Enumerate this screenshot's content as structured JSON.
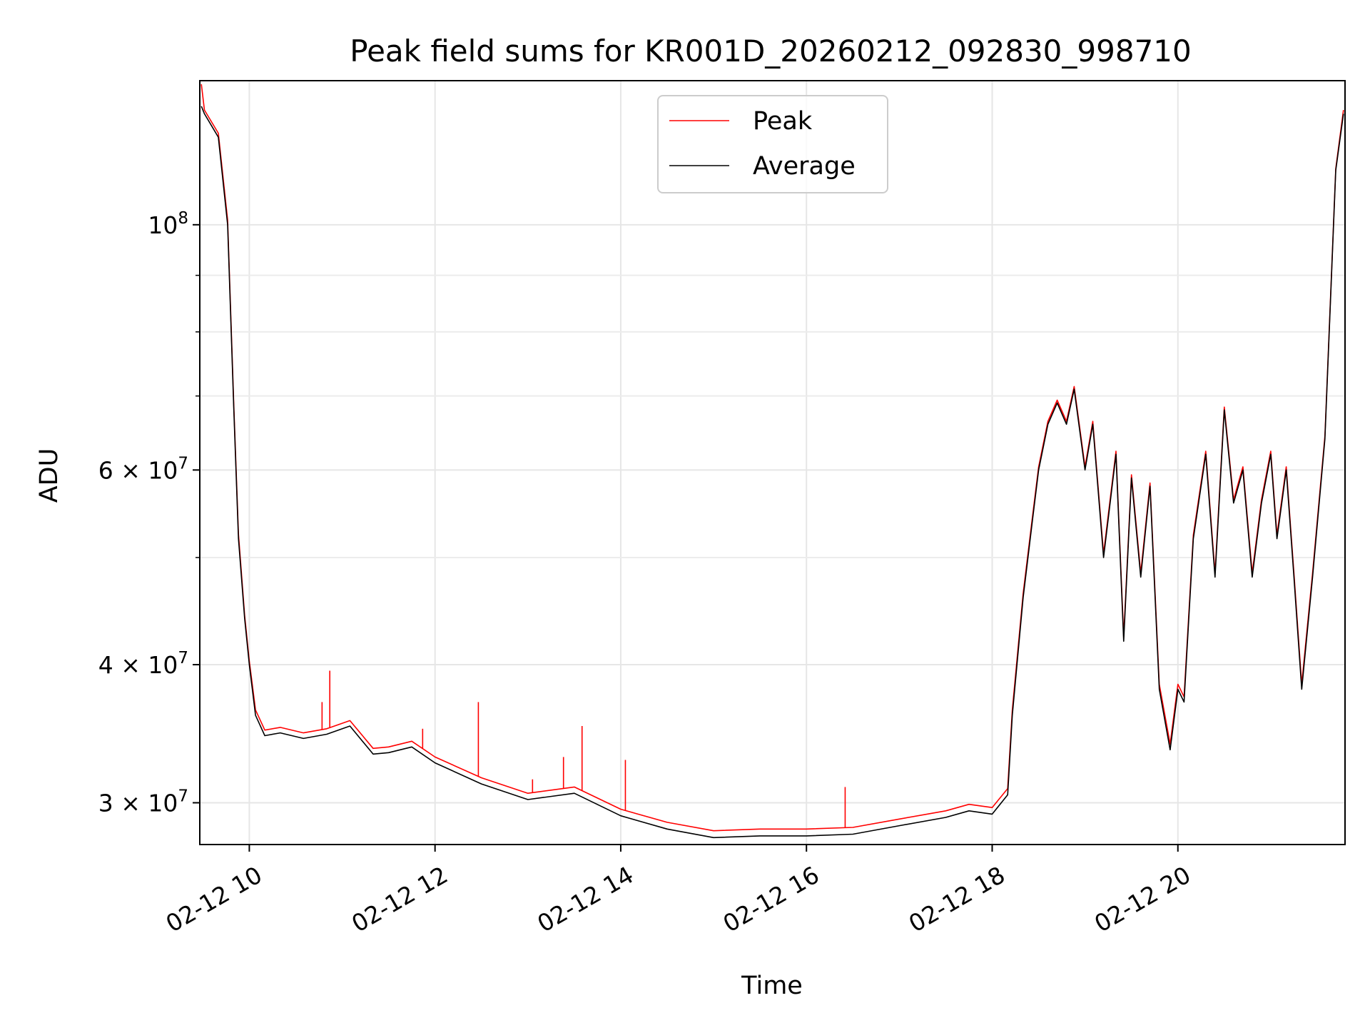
{
  "chart_data": {
    "type": "line",
    "title": "Peak field sums for KR001D_20260212_092830_998710",
    "xlabel": "Time",
    "ylabel": "ADU",
    "yscale": "log",
    "grid": true,
    "legend": {
      "placement": "upper center",
      "entries": [
        "Peak",
        "Average"
      ]
    },
    "colors": {
      "Peak": "#ff0000",
      "Average": "#000000"
    },
    "xlim": [
      "2026-02-12 09:28",
      "2026-02-12 21:48"
    ],
    "ylim": [
      27500000,
      135000000
    ],
    "xticks": [
      {
        "value": "2026-02-12 10:00",
        "label": "02-12 10"
      },
      {
        "value": "2026-02-12 12:00",
        "label": "02-12 12"
      },
      {
        "value": "2026-02-12 14:00",
        "label": "02-12 14"
      },
      {
        "value": "2026-02-12 16:00",
        "label": "02-12 16"
      },
      {
        "value": "2026-02-12 18:00",
        "label": "02-12 18"
      },
      {
        "value": "2026-02-12 20:00",
        "label": "02-12 20"
      }
    ],
    "yticks_major": [
      {
        "value": 30000000,
        "mantissa": "3",
        "exp": "7"
      },
      {
        "value": 40000000,
        "mantissa": "4",
        "exp": "7"
      },
      {
        "value": 60000000,
        "mantissa": "6",
        "exp": "7"
      },
      {
        "value": 100000000,
        "mantissa": "",
        "exp": "8"
      }
    ],
    "yticks_minor": [
      50000000,
      70000000,
      80000000,
      90000000
    ],
    "series": [
      {
        "name": "Average",
        "x": [
          "2026-02-12 09:29",
          "2026-02-12 09:31",
          "2026-02-12 09:40",
          "2026-02-12 09:46",
          "2026-02-12 09:50",
          "2026-02-12 09:53",
          "2026-02-12 09:57",
          "2026-02-12 10:00",
          "2026-02-12 10:04",
          "2026-02-12 10:10",
          "2026-02-12 10:20",
          "2026-02-12 10:35",
          "2026-02-12 10:50",
          "2026-02-12 11:05",
          "2026-02-12 11:20",
          "2026-02-12 11:30",
          "2026-02-12 11:45",
          "2026-02-12 12:00",
          "2026-02-12 12:30",
          "2026-02-12 13:00",
          "2026-02-12 13:30",
          "2026-02-12 14:00",
          "2026-02-12 14:30",
          "2026-02-12 15:00",
          "2026-02-12 15:30",
          "2026-02-12 16:00",
          "2026-02-12 16:30",
          "2026-02-12 17:00",
          "2026-02-12 17:30",
          "2026-02-12 17:45",
          "2026-02-12 18:00",
          "2026-02-12 18:10",
          "2026-02-12 18:13",
          "2026-02-12 18:20",
          "2026-02-12 18:26",
          "2026-02-12 18:30",
          "2026-02-12 18:36",
          "2026-02-12 18:42",
          "2026-02-12 18:48",
          "2026-02-12 18:53",
          "2026-02-12 19:00",
          "2026-02-12 19:05",
          "2026-02-12 19:12",
          "2026-02-12 19:20",
          "2026-02-12 19:25",
          "2026-02-12 19:30",
          "2026-02-12 19:36",
          "2026-02-12 19:42",
          "2026-02-12 19:48",
          "2026-02-12 19:55",
          "2026-02-12 20:00",
          "2026-02-12 20:04",
          "2026-02-12 20:10",
          "2026-02-12 20:18",
          "2026-02-12 20:24",
          "2026-02-12 20:30",
          "2026-02-12 20:36",
          "2026-02-12 20:42",
          "2026-02-12 20:48",
          "2026-02-12 20:54",
          "2026-02-12 21:00",
          "2026-02-12 21:04",
          "2026-02-12 21:10",
          "2026-02-12 21:15",
          "2026-02-12 21:20",
          "2026-02-12 21:27",
          "2026-02-12 21:35",
          "2026-02-12 21:42",
          "2026-02-12 21:47"
        ],
        "y": [
          128000000,
          126000000,
          120000000,
          100000000,
          68000000,
          52000000,
          44000000,
          40000000,
          36000000,
          34500000,
          34700000,
          34300000,
          34600000,
          35200000,
          33200000,
          33300000,
          33700000,
          32600000,
          31200000,
          30200000,
          30600000,
          29200000,
          28400000,
          27900000,
          28000000,
          28000000,
          28100000,
          28600000,
          29100000,
          29500000,
          29300000,
          30500000,
          36000000,
          46000000,
          54000000,
          60000000,
          66000000,
          69000000,
          66000000,
          71000000,
          60000000,
          66000000,
          50000000,
          62000000,
          42000000,
          59000000,
          48000000,
          58000000,
          38000000,
          33500000,
          38000000,
          37000000,
          52000000,
          62000000,
          48000000,
          68000000,
          56000000,
          60000000,
          48000000,
          56000000,
          62000000,
          52000000,
          60000000,
          48000000,
          38000000,
          48000000,
          64000000,
          112000000,
          126000000
        ]
      },
      {
        "name": "Peak",
        "x": [
          "2026-02-12 09:29",
          "2026-02-12 09:31",
          "2026-02-12 09:40",
          "2026-02-12 09:46",
          "2026-02-12 09:50",
          "2026-02-12 09:53",
          "2026-02-12 09:57",
          "2026-02-12 10:00",
          "2026-02-12 10:04",
          "2026-02-12 10:10",
          "2026-02-12 10:20",
          "2026-02-12 10:35",
          "2026-02-12 10:50",
          "2026-02-12 11:05",
          "2026-02-12 11:20",
          "2026-02-12 11:30",
          "2026-02-12 11:45",
          "2026-02-12 12:00",
          "2026-02-12 12:30",
          "2026-02-12 13:00",
          "2026-02-12 13:30",
          "2026-02-12 14:00",
          "2026-02-12 14:30",
          "2026-02-12 15:00",
          "2026-02-12 15:30",
          "2026-02-12 16:00",
          "2026-02-12 16:30",
          "2026-02-12 17:00",
          "2026-02-12 17:30",
          "2026-02-12 17:45",
          "2026-02-12 18:00",
          "2026-02-12 18:10",
          "2026-02-12 18:13",
          "2026-02-12 18:20",
          "2026-02-12 18:26",
          "2026-02-12 18:30",
          "2026-02-12 18:36",
          "2026-02-12 18:42",
          "2026-02-12 18:48",
          "2026-02-12 18:53",
          "2026-02-12 19:00",
          "2026-02-12 19:05",
          "2026-02-12 19:12",
          "2026-02-12 19:20",
          "2026-02-12 19:25",
          "2026-02-12 19:30",
          "2026-02-12 19:36",
          "2026-02-12 19:42",
          "2026-02-12 19:48",
          "2026-02-12 19:55",
          "2026-02-12 20:00",
          "2026-02-12 20:04",
          "2026-02-12 20:10",
          "2026-02-12 20:18",
          "2026-02-12 20:24",
          "2026-02-12 20:30",
          "2026-02-12 20:36",
          "2026-02-12 20:42",
          "2026-02-12 20:48",
          "2026-02-12 20:54",
          "2026-02-12 21:00",
          "2026-02-12 21:04",
          "2026-02-12 21:10",
          "2026-02-12 21:15",
          "2026-02-12 21:20",
          "2026-02-12 21:27",
          "2026-02-12 21:35",
          "2026-02-12 21:42",
          "2026-02-12 21:47"
        ],
        "y": [
          134000000,
          127000000,
          121000000,
          101000000,
          68500000,
          52500000,
          44300000,
          40300000,
          36400000,
          34900000,
          35100000,
          34700000,
          35000000,
          35600000,
          33600000,
          33700000,
          34100000,
          33000000,
          31600000,
          30600000,
          31000000,
          29600000,
          28800000,
          28300000,
          28400000,
          28400000,
          28500000,
          29000000,
          29500000,
          29900000,
          29700000,
          30900000,
          36400000,
          46400000,
          54400000,
          60400000,
          66400000,
          69400000,
          66400000,
          71400000,
          60400000,
          66400000,
          50400000,
          62400000,
          42400000,
          59400000,
          48400000,
          58400000,
          38400000,
          33900000,
          38400000,
          37400000,
          52400000,
          62400000,
          48400000,
          68400000,
          56400000,
          60400000,
          48400000,
          56400000,
          62400000,
          52400000,
          60400000,
          48400000,
          38400000,
          48400000,
          64400000,
          112400000,
          127000000
        ]
      }
    ],
    "annotations": [
      {
        "series": "Peak",
        "type": "spike",
        "x": "2026-02-12 10:47",
        "y": 37000000
      },
      {
        "series": "Peak",
        "type": "spike",
        "x": "2026-02-12 10:52",
        "y": 39500000
      },
      {
        "series": "Peak",
        "type": "spike",
        "x": "2026-02-12 11:52",
        "y": 35000000
      },
      {
        "series": "Peak",
        "type": "spike",
        "x": "2026-02-12 12:28",
        "y": 37000000
      },
      {
        "series": "Peak",
        "type": "spike",
        "x": "2026-02-12 13:03",
        "y": 31500000
      },
      {
        "series": "Peak",
        "type": "spike",
        "x": "2026-02-12 13:23",
        "y": 33000000
      },
      {
        "series": "Peak",
        "type": "spike",
        "x": "2026-02-12 13:35",
        "y": 35200000
      },
      {
        "series": "Peak",
        "type": "spike",
        "x": "2026-02-12 14:03",
        "y": 32800000
      },
      {
        "series": "Peak",
        "type": "spike",
        "x": "2026-02-12 16:25",
        "y": 31000000
      }
    ]
  }
}
